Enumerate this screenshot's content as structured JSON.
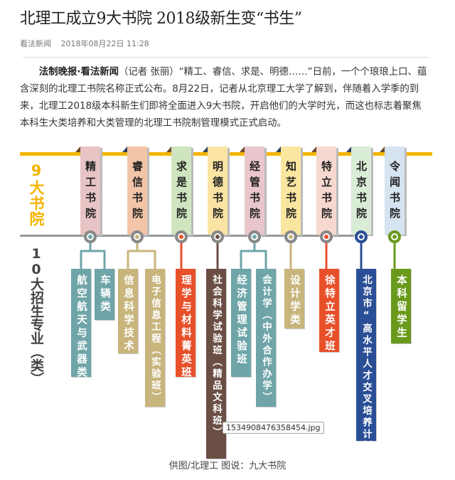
{
  "article": {
    "title": "北理工成立9大书院 2018级新生变“书生”",
    "source": "看法新闻",
    "datetime": "2018年08月22日 11:28",
    "lead_bold": "法制晚报·看法新闻",
    "body": "（记者 张丽）“精工、睿信、求是、明德……”日前，一个个琅琅上口、蕴含深刻的北理工书院名称正式公布。8月22日，记者从北京理工大学了解到，伴随着入学季的到来，北理工2018级本科新生们即将全面进入9大书院，开启他们的大学时光，而这也标志着聚焦本科生大类培养和大类管理的北理工书院制管理模式正式启动。"
  },
  "infographic": {
    "colleges_label": "9大书院",
    "majors_label": "10大招生专业（类）",
    "colleges": [
      {
        "name": "精工书院",
        "color": "#e8c4c4",
        "dot": "#6fa5a8"
      },
      {
        "name": "睿信书院",
        "color": "#f2c4a8",
        "dot": "#c8b57c"
      },
      {
        "name": "求是书院",
        "color": "#cfe5bf",
        "dot": "#e8502a"
      },
      {
        "name": "明德书院",
        "color": "#fbe3a3",
        "dot": "#6b4f45"
      },
      {
        "name": "经管书院",
        "color": "#e9c6cc",
        "dot": "#6fa5a8"
      },
      {
        "name": "知艺书院",
        "color": "#fbe6a0",
        "dot": "#c8b57c"
      },
      {
        "name": "特立书院",
        "color": "#f7d8d0",
        "dot": "#e8502a"
      },
      {
        "name": "北京书院",
        "color": "#d9ecd6",
        "dot": "#2a4f96"
      },
      {
        "name": "令闻书院",
        "color": "#d6e3f0",
        "dot": "#6a9a1c"
      }
    ],
    "majors": [
      {
        "name": "航空航天与武器类",
        "color": "#6fa5a8"
      },
      {
        "name": "车辆类",
        "color": "#6fa5a8"
      },
      {
        "name": "信息科学技术",
        "color": "#c8b57c"
      },
      {
        "name": "电子信息工程（实验班）",
        "color": "#c8b57c"
      },
      {
        "name": "理学与材料菁英班",
        "color": "#e8502a"
      },
      {
        "name": "社会科学试验班（精品文科班）",
        "color": "#6b4f45"
      },
      {
        "name": "经济管理试验班",
        "color": "#6fa5a8"
      },
      {
        "name": "会计学（中外合作办学）",
        "color": "#6fa5a8"
      },
      {
        "name": "设计学类",
        "color": "#c8b57c"
      },
      {
        "name": "徐特立英才班",
        "color": "#e8502a"
      },
      {
        "name": "北京市“高水平人才交叉培养计划”",
        "color": "#2a4f96"
      },
      {
        "name": "本科留学生",
        "color": "#6a9a1c"
      }
    ],
    "tooltip": "1534908476358454.jpg",
    "caption": "供图/北理工  图说：九大书院"
  }
}
